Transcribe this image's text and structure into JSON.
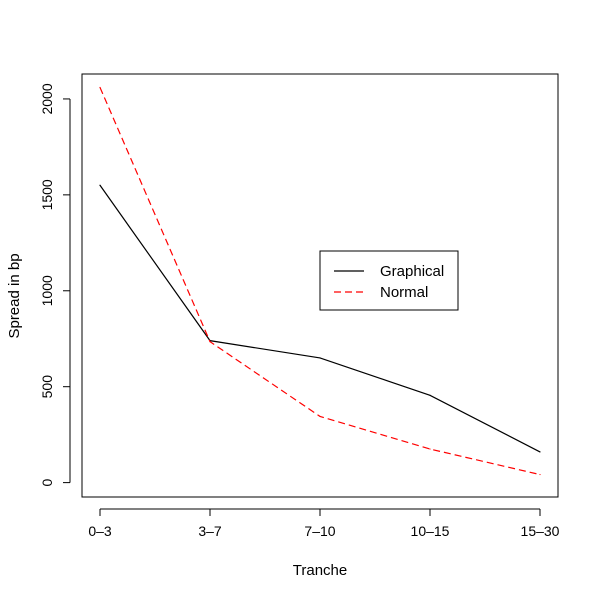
{
  "chart_data": {
    "type": "line",
    "categories": [
      "0–3",
      "3–7",
      "7–10",
      "10–15",
      "15–30"
    ],
    "series": [
      {
        "name": "Graphical",
        "values": [
          1550,
          740,
          650,
          455,
          160
        ],
        "color": "#000000",
        "dash": "solid"
      },
      {
        "name": "Normal",
        "values": [
          2060,
          735,
          345,
          175,
          42
        ],
        "color": "#ff0000",
        "dash": "dashed"
      }
    ],
    "title": "",
    "xlabel": "Tranche",
    "ylabel": "Spread in bp",
    "yticks": [
      "0",
      "500",
      "1000",
      "1500",
      "2000"
    ],
    "ylim": [
      -75,
      2130
    ],
    "legend_position": "center-right",
    "grid": false
  }
}
